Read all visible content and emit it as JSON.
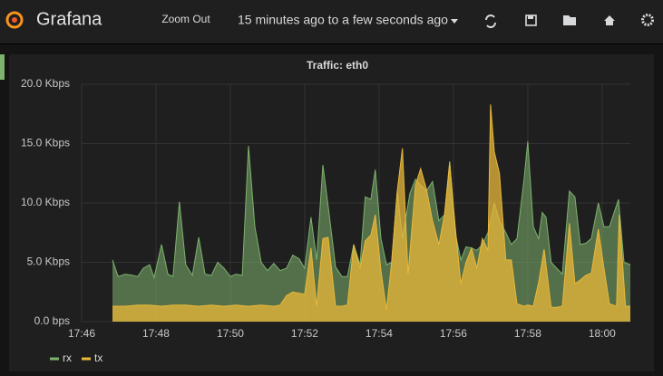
{
  "header": {
    "brand": "Grafana",
    "zoom_out": "Zoom Out",
    "time_range": "15 minutes ago to a few seconds ago"
  },
  "chart_data": {
    "type": "area",
    "title": "Traffic: eth0",
    "xlim": [
      1066,
      1080.76
    ],
    "xticks": [
      {
        "value": 1066,
        "label": "17:46"
      },
      {
        "value": 1068,
        "label": "17:48"
      },
      {
        "value": 1070,
        "label": "17:50"
      },
      {
        "value": 1072,
        "label": "17:52"
      },
      {
        "value": 1074,
        "label": "17:54"
      },
      {
        "value": 1076,
        "label": "17:56"
      },
      {
        "value": 1078,
        "label": "17:58"
      },
      {
        "value": 1080,
        "label": "18:00"
      }
    ],
    "ylim": [
      0,
      20
    ],
    "yticks": [
      {
        "value": 0,
        "label": "0.0 bps"
      },
      {
        "value": 5,
        "label": "5.0 Kbps"
      },
      {
        "value": 10,
        "label": "10.0 Kbps"
      },
      {
        "value": 15,
        "label": "15.0 Kbps"
      },
      {
        "value": 20,
        "label": "20.0 Kbps"
      }
    ],
    "grid": true,
    "legend": "bottom-left",
    "series": [
      {
        "name": "rx",
        "color": "#7eb26d",
        "x": [
          1066.83,
          1066.98,
          1067.17,
          1067.37,
          1067.51,
          1067.66,
          1067.83,
          1067.95,
          1068.15,
          1068.32,
          1068.46,
          1068.63,
          1068.8,
          1068.98,
          1069.15,
          1069.32,
          1069.49,
          1069.66,
          1069.83,
          1070.0,
          1070.15,
          1070.32,
          1070.49,
          1070.66,
          1070.83,
          1071.0,
          1071.17,
          1071.34,
          1071.51,
          1071.68,
          1071.85,
          1072.0,
          1072.17,
          1072.32,
          1072.49,
          1072.66,
          1072.83,
          1073.0,
          1073.15,
          1073.32,
          1073.49,
          1073.63,
          1073.78,
          1073.9,
          1074.05,
          1074.2,
          1074.34,
          1074.49,
          1074.63,
          1074.83,
          1074.98,
          1075.12,
          1075.27,
          1075.44,
          1075.61,
          1075.76,
          1075.9,
          1076.05,
          1076.2,
          1076.34,
          1076.49,
          1076.63,
          1076.78,
          1076.93,
          1077.1,
          1077.24,
          1077.41,
          1077.56,
          1077.71,
          1077.9,
          1078.0,
          1078.15,
          1078.29,
          1078.39,
          1078.49,
          1078.63,
          1078.78,
          1078.93,
          1079.12,
          1079.27,
          1079.41,
          1079.56,
          1079.71,
          1079.9,
          1080.05,
          1080.2,
          1080.44,
          1080.59,
          1080.76
        ],
        "values": [
          5.2,
          3.8,
          4.0,
          3.9,
          3.8,
          4.5,
          4.8,
          3.7,
          6.5,
          4.0,
          3.8,
          10.1,
          4.8,
          3.9,
          7.1,
          4.0,
          3.9,
          5.0,
          4.5,
          3.8,
          4.0,
          3.9,
          14.8,
          8.0,
          5.0,
          4.3,
          4.9,
          4.3,
          4.5,
          5.6,
          5.3,
          4.5,
          8.8,
          5.2,
          13.2,
          9.0,
          4.6,
          3.8,
          3.8,
          6.5,
          4.8,
          10.5,
          10.3,
          12.8,
          7.0,
          4.8,
          5.0,
          11.0,
          7.0,
          10.8,
          12.0,
          11.5,
          11.0,
          11.8,
          8.5,
          9.0,
          13.5,
          7.5,
          5.2,
          6.3,
          6.2,
          6.0,
          6.5,
          7.5,
          10.0,
          8.5,
          7.5,
          6.5,
          7.0,
          12.0,
          15.2,
          8.0,
          7.0,
          9.2,
          8.8,
          5.0,
          4.5,
          4.0,
          11.0,
          10.5,
          6.5,
          6.6,
          7.0,
          10.0,
          8.0,
          8.0,
          10.3,
          5.0,
          4.8
        ]
      },
      {
        "name": "tx",
        "color": "#eab839",
        "x": [
          1066.83,
          1067.17,
          1067.51,
          1067.83,
          1068.15,
          1068.46,
          1068.8,
          1069.15,
          1069.49,
          1069.83,
          1070.15,
          1070.49,
          1070.83,
          1071.17,
          1071.34,
          1071.51,
          1071.68,
          1071.85,
          1072.0,
          1072.17,
          1072.32,
          1072.49,
          1072.63,
          1072.83,
          1073.0,
          1073.15,
          1073.32,
          1073.49,
          1073.63,
          1073.78,
          1073.9,
          1074.05,
          1074.2,
          1074.34,
          1074.49,
          1074.63,
          1074.78,
          1074.98,
          1075.12,
          1075.27,
          1075.44,
          1075.61,
          1075.76,
          1075.9,
          1076.05,
          1076.2,
          1076.34,
          1076.49,
          1076.63,
          1076.78,
          1076.93,
          1077.0,
          1077.1,
          1077.24,
          1077.41,
          1077.56,
          1077.71,
          1077.9,
          1078.0,
          1078.15,
          1078.29,
          1078.44,
          1078.63,
          1078.78,
          1078.93,
          1079.12,
          1079.27,
          1079.41,
          1079.56,
          1079.71,
          1079.9,
          1080.05,
          1080.2,
          1080.39,
          1080.46,
          1080.63,
          1080.76
        ],
        "values": [
          1.3,
          1.3,
          1.4,
          1.4,
          1.3,
          1.4,
          1.4,
          1.3,
          1.4,
          1.3,
          1.4,
          1.3,
          1.4,
          1.3,
          1.4,
          2.2,
          2.5,
          2.4,
          2.3,
          6.2,
          1.3,
          7.0,
          7.1,
          1.3,
          1.3,
          1.4,
          6.5,
          4.5,
          6.8,
          7.3,
          9.0,
          4.3,
          1.0,
          5.0,
          11.0,
          14.6,
          4.0,
          11.5,
          12.9,
          11.2,
          8.5,
          6.5,
          9.0,
          13.4,
          8.0,
          3.2,
          5.0,
          6.2,
          4.5,
          7.0,
          6.0,
          18.3,
          14.3,
          12.5,
          5.2,
          5.2,
          1.5,
          1.3,
          1.4,
          1.3,
          3.3,
          6.1,
          1.2,
          1.2,
          1.3,
          8.3,
          3.2,
          3.5,
          3.9,
          4.1,
          7.8,
          4.5,
          1.5,
          1.3,
          9.0,
          1.3,
          1.3
        ]
      }
    ]
  }
}
